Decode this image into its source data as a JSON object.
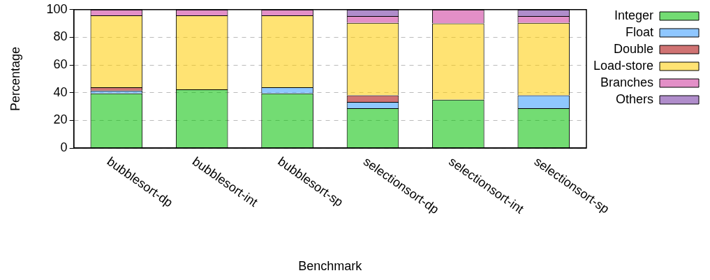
{
  "chart_data": {
    "type": "bar",
    "stacked": true,
    "xlabel": "Benchmark",
    "ylabel": "Percentage",
    "categories": [
      "bubblesort-dp",
      "bubblesort-int",
      "bubblesort-sp",
      "selectionsort-dp",
      "selectionsort-int",
      "selectionsort-sp"
    ],
    "series": [
      {
        "name": "Integer",
        "color": "#00c000",
        "values": [
          39.5,
          42.4,
          39.5,
          28.7,
          34.9,
          28.7
        ]
      },
      {
        "name": "Float",
        "color": "#3399ff",
        "values": [
          2.0,
          0,
          4.4,
          4.6,
          0,
          9.4
        ]
      },
      {
        "name": "Double",
        "color": "#aa0000",
        "values": [
          2.4,
          0,
          0,
          4.8,
          0,
          0
        ]
      },
      {
        "name": "Load-store",
        "color": "#ffcc00",
        "values": [
          51.9,
          53.4,
          51.9,
          52.3,
          55.2,
          52.3
        ]
      },
      {
        "name": "Branches",
        "color": "#cc3399",
        "values": [
          4.2,
          4.2,
          4.2,
          4.9,
          9.9,
          4.9
        ]
      },
      {
        "name": "Others",
        "color": "#7030a0",
        "values": [
          0,
          0,
          0,
          4.7,
          0,
          4.7
        ]
      }
    ],
    "ylim": [
      0,
      100
    ],
    "yticks": [
      0,
      20,
      40,
      60,
      80,
      100
    ],
    "grid": "y",
    "legend": "top right"
  }
}
